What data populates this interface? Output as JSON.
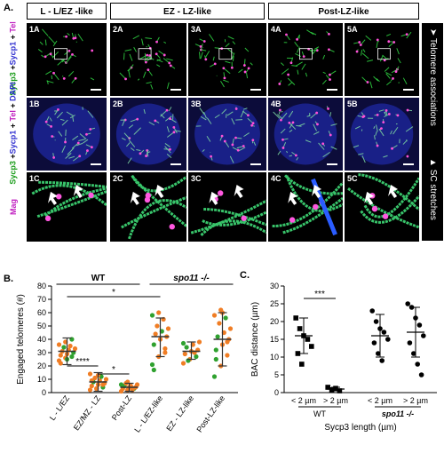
{
  "panel_a": {
    "letter": "A.",
    "headers": [
      "L - L/EZ -like",
      "EZ - LZ-like",
      "Post-LZ-like"
    ],
    "row_labels": [
      {
        "parts": [
          {
            "t": "Sycp3",
            "c": "#1a9c1a"
          },
          {
            "t": " +",
            "c": "#000"
          },
          {
            "t": "Sycp1",
            "c": "#3030d0"
          },
          {
            "t": " + ",
            "c": "#000"
          },
          {
            "t": "Tel",
            "c": "#c020c0"
          }
        ]
      },
      {
        "parts": [
          {
            "t": "Sycp3",
            "c": "#1a9c1a"
          },
          {
            "t": " +",
            "c": "#000"
          },
          {
            "t": "Sycp1",
            "c": "#3030d0"
          },
          {
            "t": " + ",
            "c": "#000"
          },
          {
            "t": "Tel",
            "c": "#c020c0"
          },
          {
            "t": " + ",
            "c": "#000"
          },
          {
            "t": "DAPI",
            "c": "#3030d0"
          }
        ]
      },
      {
        "parts": [
          {
            "t": "Mag",
            "c": "#c020c0"
          }
        ]
      }
    ],
    "tiles": [
      [
        "1A",
        "2A",
        "3A",
        "4A",
        "5A"
      ],
      [
        "1B",
        "2B",
        "3B",
        "4B",
        "5B"
      ],
      [
        "1C",
        "2C",
        "3C",
        "4C",
        "5C"
      ]
    ],
    "side_labels": {
      "top": "Telomere associations",
      "bottom": "SC stretches"
    }
  },
  "panel_b": {
    "letter": "B.",
    "chart_data": {
      "type": "scatter",
      "ylabel": "Engaged telomeres (#)",
      "ylim": [
        0,
        80
      ],
      "yticks": [
        0,
        10,
        20,
        30,
        40,
        50,
        60,
        70,
        80
      ],
      "categories": [
        "L - L/EZ",
        "EZ/MZ - LZ",
        "Post-LZ",
        "L - L/EZ-like",
        "EZ - LZ-like",
        "Post-LZ-like"
      ],
      "group_labels": [
        "WT",
        "spo11 -/-"
      ],
      "significance": [
        "****",
        "*",
        "*"
      ],
      "series": [
        {
          "category": "L - L/EZ",
          "mean": 31,
          "sd_low": 21,
          "sd_high": 41,
          "points": [
            [
              24,
              "o"
            ],
            [
              26,
              "o"
            ],
            [
              27,
              "g"
            ],
            [
              28,
              "o"
            ],
            [
              29,
              "o"
            ],
            [
              30,
              "g"
            ],
            [
              31,
              "o"
            ],
            [
              32,
              "o"
            ],
            [
              33,
              "o"
            ],
            [
              34,
              "g"
            ],
            [
              35,
              "o"
            ],
            [
              36,
              "o"
            ],
            [
              38,
              "o"
            ],
            [
              40,
              "g"
            ],
            [
              22,
              "o"
            ],
            [
              25,
              "g"
            ]
          ]
        },
        {
          "category": "EZ/MZ - LZ",
          "mean": 8,
          "sd_low": 1,
          "sd_high": 15,
          "points": [
            [
              2,
              "o"
            ],
            [
              3,
              "o"
            ],
            [
              4,
              "g"
            ],
            [
              5,
              "o"
            ],
            [
              6,
              "o"
            ],
            [
              7,
              "o"
            ],
            [
              8,
              "g"
            ],
            [
              9,
              "o"
            ],
            [
              10,
              "o"
            ],
            [
              11,
              "o"
            ],
            [
              12,
              "g"
            ],
            [
              14,
              "o"
            ],
            [
              3,
              "o"
            ],
            [
              6,
              "o"
            ],
            [
              9,
              "o"
            ],
            [
              13,
              "o"
            ]
          ]
        },
        {
          "category": "Post-LZ",
          "mean": 4,
          "sd_low": 1,
          "sd_high": 7,
          "points": [
            [
              1,
              "o"
            ],
            [
              2,
              "o"
            ],
            [
              3,
              "g"
            ],
            [
              3,
              "o"
            ],
            [
              4,
              "o"
            ],
            [
              4,
              "o"
            ],
            [
              5,
              "g"
            ],
            [
              5,
              "o"
            ],
            [
              6,
              "o"
            ],
            [
              7,
              "o"
            ],
            [
              2,
              "o"
            ],
            [
              6,
              "g"
            ],
            [
              8,
              "o"
            ]
          ]
        },
        {
          "category": "L - L/EZ-like",
          "mean": 42,
          "sd_low": 27,
          "sd_high": 56,
          "points": [
            [
              21,
              "g"
            ],
            [
              27,
              "o"
            ],
            [
              30,
              "o"
            ],
            [
              36,
              "g"
            ],
            [
              40,
              "o"
            ],
            [
              42,
              "o"
            ],
            [
              44,
              "o"
            ],
            [
              46,
              "g"
            ],
            [
              48,
              "o"
            ],
            [
              50,
              "o"
            ],
            [
              55,
              "o"
            ],
            [
              58,
              "g"
            ],
            [
              60,
              "o"
            ],
            [
              33,
              "o"
            ],
            [
              17,
              "g"
            ]
          ]
        },
        {
          "category": "EZ - LZ-like",
          "mean": 31,
          "sd_low": 25,
          "sd_high": 38,
          "points": [
            [
              22,
              "o"
            ],
            [
              25,
              "o"
            ],
            [
              27,
              "g"
            ],
            [
              29,
              "o"
            ],
            [
              31,
              "o"
            ],
            [
              32,
              "o"
            ],
            [
              34,
              "g"
            ],
            [
              36,
              "o"
            ],
            [
              38,
              "o"
            ],
            [
              24,
              "g"
            ],
            [
              30,
              "o"
            ],
            [
              37,
              "g"
            ]
          ]
        },
        {
          "category": "Post-LZ-like",
          "mean": 40,
          "sd_low": 20,
          "sd_high": 60,
          "points": [
            [
              12,
              "g"
            ],
            [
              20,
              "o"
            ],
            [
              28,
              "o"
            ],
            [
              32,
              "g"
            ],
            [
              36,
              "o"
            ],
            [
              40,
              "o"
            ],
            [
              42,
              "g"
            ],
            [
              45,
              "o"
            ],
            [
              48,
              "o"
            ],
            [
              52,
              "o"
            ],
            [
              56,
              "g"
            ],
            [
              58,
              "o"
            ],
            [
              62,
              "o"
            ],
            [
              38,
              "o"
            ],
            [
              25,
              "g"
            ],
            [
              60,
              "o"
            ]
          ]
        }
      ],
      "colors": {
        "o": "#f07d24",
        "g": "#2fa12f",
        "bar": "#333333"
      }
    }
  },
  "panel_c": {
    "letter": "C.",
    "chart_data": {
      "type": "scatter",
      "ylabel": "BAC distance (µm)",
      "xlabel": "Sycp3 length (µm)",
      "ylim": [
        0,
        30
      ],
      "yticks": [
        0,
        5,
        10,
        15,
        20,
        25,
        30
      ],
      "categories": [
        "< 2 µm",
        "> 2 µm",
        "< 2 µm",
        "> 2 µm"
      ],
      "group_labels": [
        "WT",
        "spo11 -/-"
      ],
      "significance": [
        "***"
      ],
      "series": [
        {
          "category": "WT < 2 µm",
          "marker": "square",
          "mean": 16,
          "sd_low": 11,
          "sd_high": 21,
          "points": [
            21,
            18,
            16,
            15,
            13,
            11,
            8
          ]
        },
        {
          "category": "WT > 2 µm",
          "marker": "square",
          "mean": 1,
          "sd_low": 0.5,
          "sd_high": 1.5,
          "points": [
            1.5,
            0.8,
            1.2,
            0.5
          ]
        },
        {
          "category": "spo11 < 2 µm",
          "marker": "circle",
          "mean": 16,
          "sd_low": 10,
          "sd_high": 22,
          "points": [
            23,
            20,
            18,
            17,
            15,
            14,
            11,
            9
          ]
        },
        {
          "category": "spo11 > 2 µm",
          "marker": "circle",
          "mean": 17,
          "sd_low": 10,
          "sd_high": 24,
          "points": [
            25,
            24,
            21,
            19,
            16,
            14,
            11,
            8,
            5
          ]
        }
      ]
    }
  }
}
